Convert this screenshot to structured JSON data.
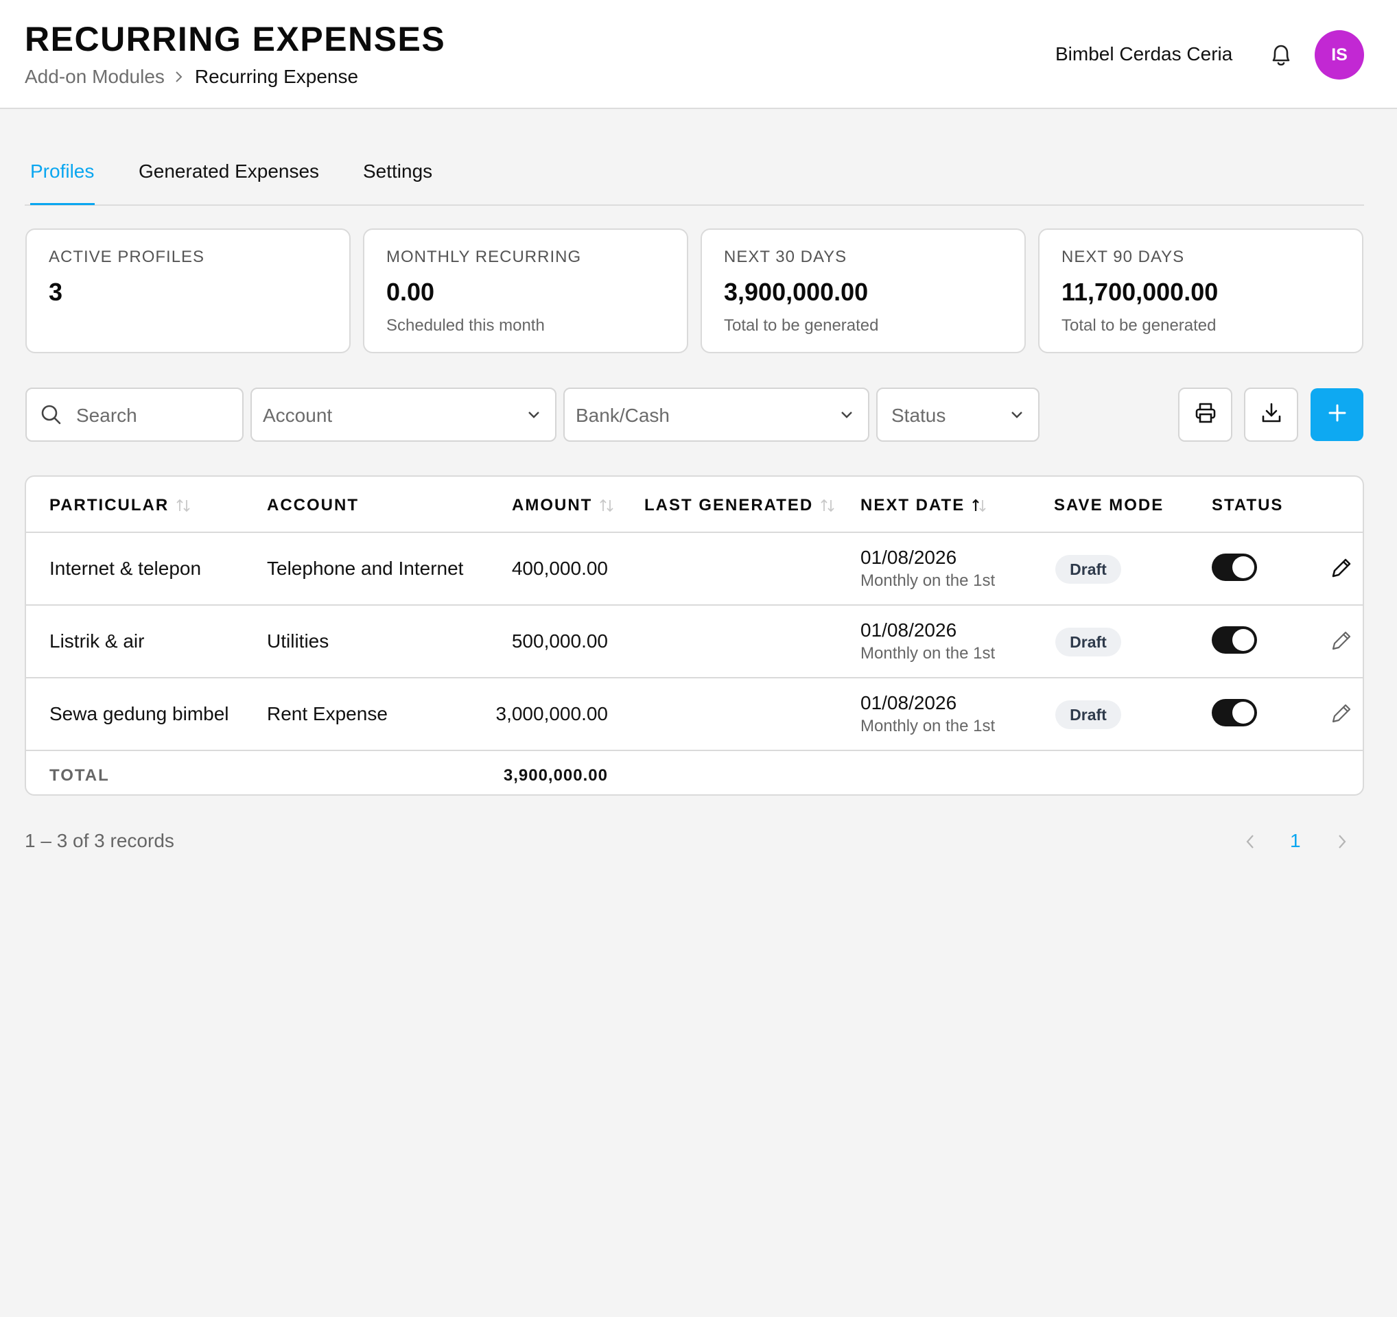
{
  "header": {
    "title": "RECURRING EXPENSES",
    "breadcrumb": {
      "parent": "Add-on Modules",
      "current": "Recurring Expense"
    },
    "org_name": "Bimbel Cerdas Ceria",
    "avatar_initials": "IS",
    "avatar_color": "#c228d3"
  },
  "tabs": [
    {
      "label": "Profiles",
      "active": true
    },
    {
      "label": "Generated Expenses",
      "active": false
    },
    {
      "label": "Settings",
      "active": false
    }
  ],
  "stats": [
    {
      "label": "ACTIVE PROFILES",
      "value": "3",
      "note": ""
    },
    {
      "label": "MONTHLY RECURRING",
      "value": "0.00",
      "note": "Scheduled this month"
    },
    {
      "label": "NEXT 30 DAYS",
      "value": "3,900,000.00",
      "note": "Total to be generated"
    },
    {
      "label": "NEXT 90 DAYS",
      "value": "11,700,000.00",
      "note": "Total to be generated"
    }
  ],
  "filters": {
    "search_placeholder": "Search",
    "account": "Account",
    "bank_cash": "Bank/Cash",
    "status": "Status"
  },
  "toolbar": {
    "print_icon": "printer-icon",
    "download_icon": "download-icon",
    "add_icon": "plus-icon",
    "accent": "#0ea9f2"
  },
  "table": {
    "columns": [
      "PARTICULAR",
      "ACCOUNT",
      "AMOUNT",
      "LAST GENERATED",
      "NEXT DATE",
      "SAVE MODE",
      "STATUS"
    ],
    "rows": [
      {
        "particular": "Internet & telepon",
        "account": "Telephone and Internet",
        "amount": "400,000.00",
        "last_generated": "",
        "next_date": "01/08/2026",
        "schedule": "Monthly on the 1st",
        "save_mode": "Draft",
        "status_on": true
      },
      {
        "particular": "Listrik & air",
        "account": "Utilities",
        "amount": "500,000.00",
        "last_generated": "",
        "next_date": "01/08/2026",
        "schedule": "Monthly on the 1st",
        "save_mode": "Draft",
        "status_on": true
      },
      {
        "particular": "Sewa gedung bimbel",
        "account": "Rent Expense",
        "amount": "3,000,000.00",
        "last_generated": "",
        "next_date": "01/08/2026",
        "schedule": "Monthly on the 1st",
        "save_mode": "Draft",
        "status_on": true
      }
    ],
    "total_label": "TOTAL",
    "total_amount": "3,900,000.00"
  },
  "pagination": {
    "summary": "1 – 3 of 3 records",
    "current_page": "1"
  }
}
